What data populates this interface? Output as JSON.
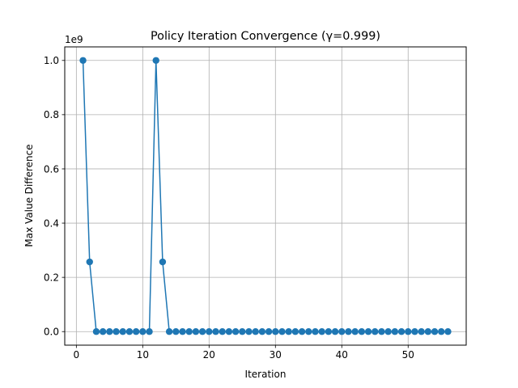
{
  "chart_data": {
    "type": "line",
    "title": "Policy Iteration Convergence (γ=0.999)",
    "xlabel": "Iteration",
    "ylabel": "Max Value Difference",
    "y_offset_label": "1e9",
    "xlim": [
      -1.75,
      58.75
    ],
    "ylim": [
      -0.05,
      1.05
    ],
    "grid": true,
    "x_ticks": [
      0,
      10,
      20,
      30,
      40,
      50
    ],
    "x_tick_labels": [
      "0",
      "10",
      "20",
      "30",
      "40",
      "50"
    ],
    "y_ticks": [
      0.0,
      0.2,
      0.4,
      0.6,
      0.8,
      1.0
    ],
    "y_tick_labels": [
      "0.0",
      "0.2",
      "0.4",
      "0.6",
      "0.8",
      "1.0"
    ],
    "series": [
      {
        "color": "#1f77b4",
        "marker": "circle",
        "x": [
          1,
          2,
          3,
          4,
          5,
          6,
          7,
          8,
          9,
          10,
          11,
          12,
          13,
          14,
          15,
          16,
          17,
          18,
          19,
          20,
          21,
          22,
          23,
          24,
          25,
          26,
          27,
          28,
          29,
          30,
          31,
          32,
          33,
          34,
          35,
          36,
          37,
          38,
          39,
          40,
          41,
          42,
          43,
          44,
          45,
          46,
          47,
          48,
          49,
          50,
          51,
          52,
          53,
          54,
          55,
          56
        ],
        "y": [
          1.0,
          0.257,
          0,
          0,
          0,
          0,
          0,
          0,
          0,
          0,
          0,
          1.0,
          0.257,
          0,
          0,
          0,
          0,
          0,
          0,
          0,
          0,
          0,
          0,
          0,
          0,
          0,
          0,
          0,
          0,
          0,
          0,
          0,
          0,
          0,
          0,
          0,
          0,
          0,
          0,
          0,
          0,
          0,
          0,
          0,
          0,
          0,
          0,
          0,
          0,
          0,
          0,
          0,
          0,
          0,
          0,
          0
        ]
      }
    ]
  }
}
